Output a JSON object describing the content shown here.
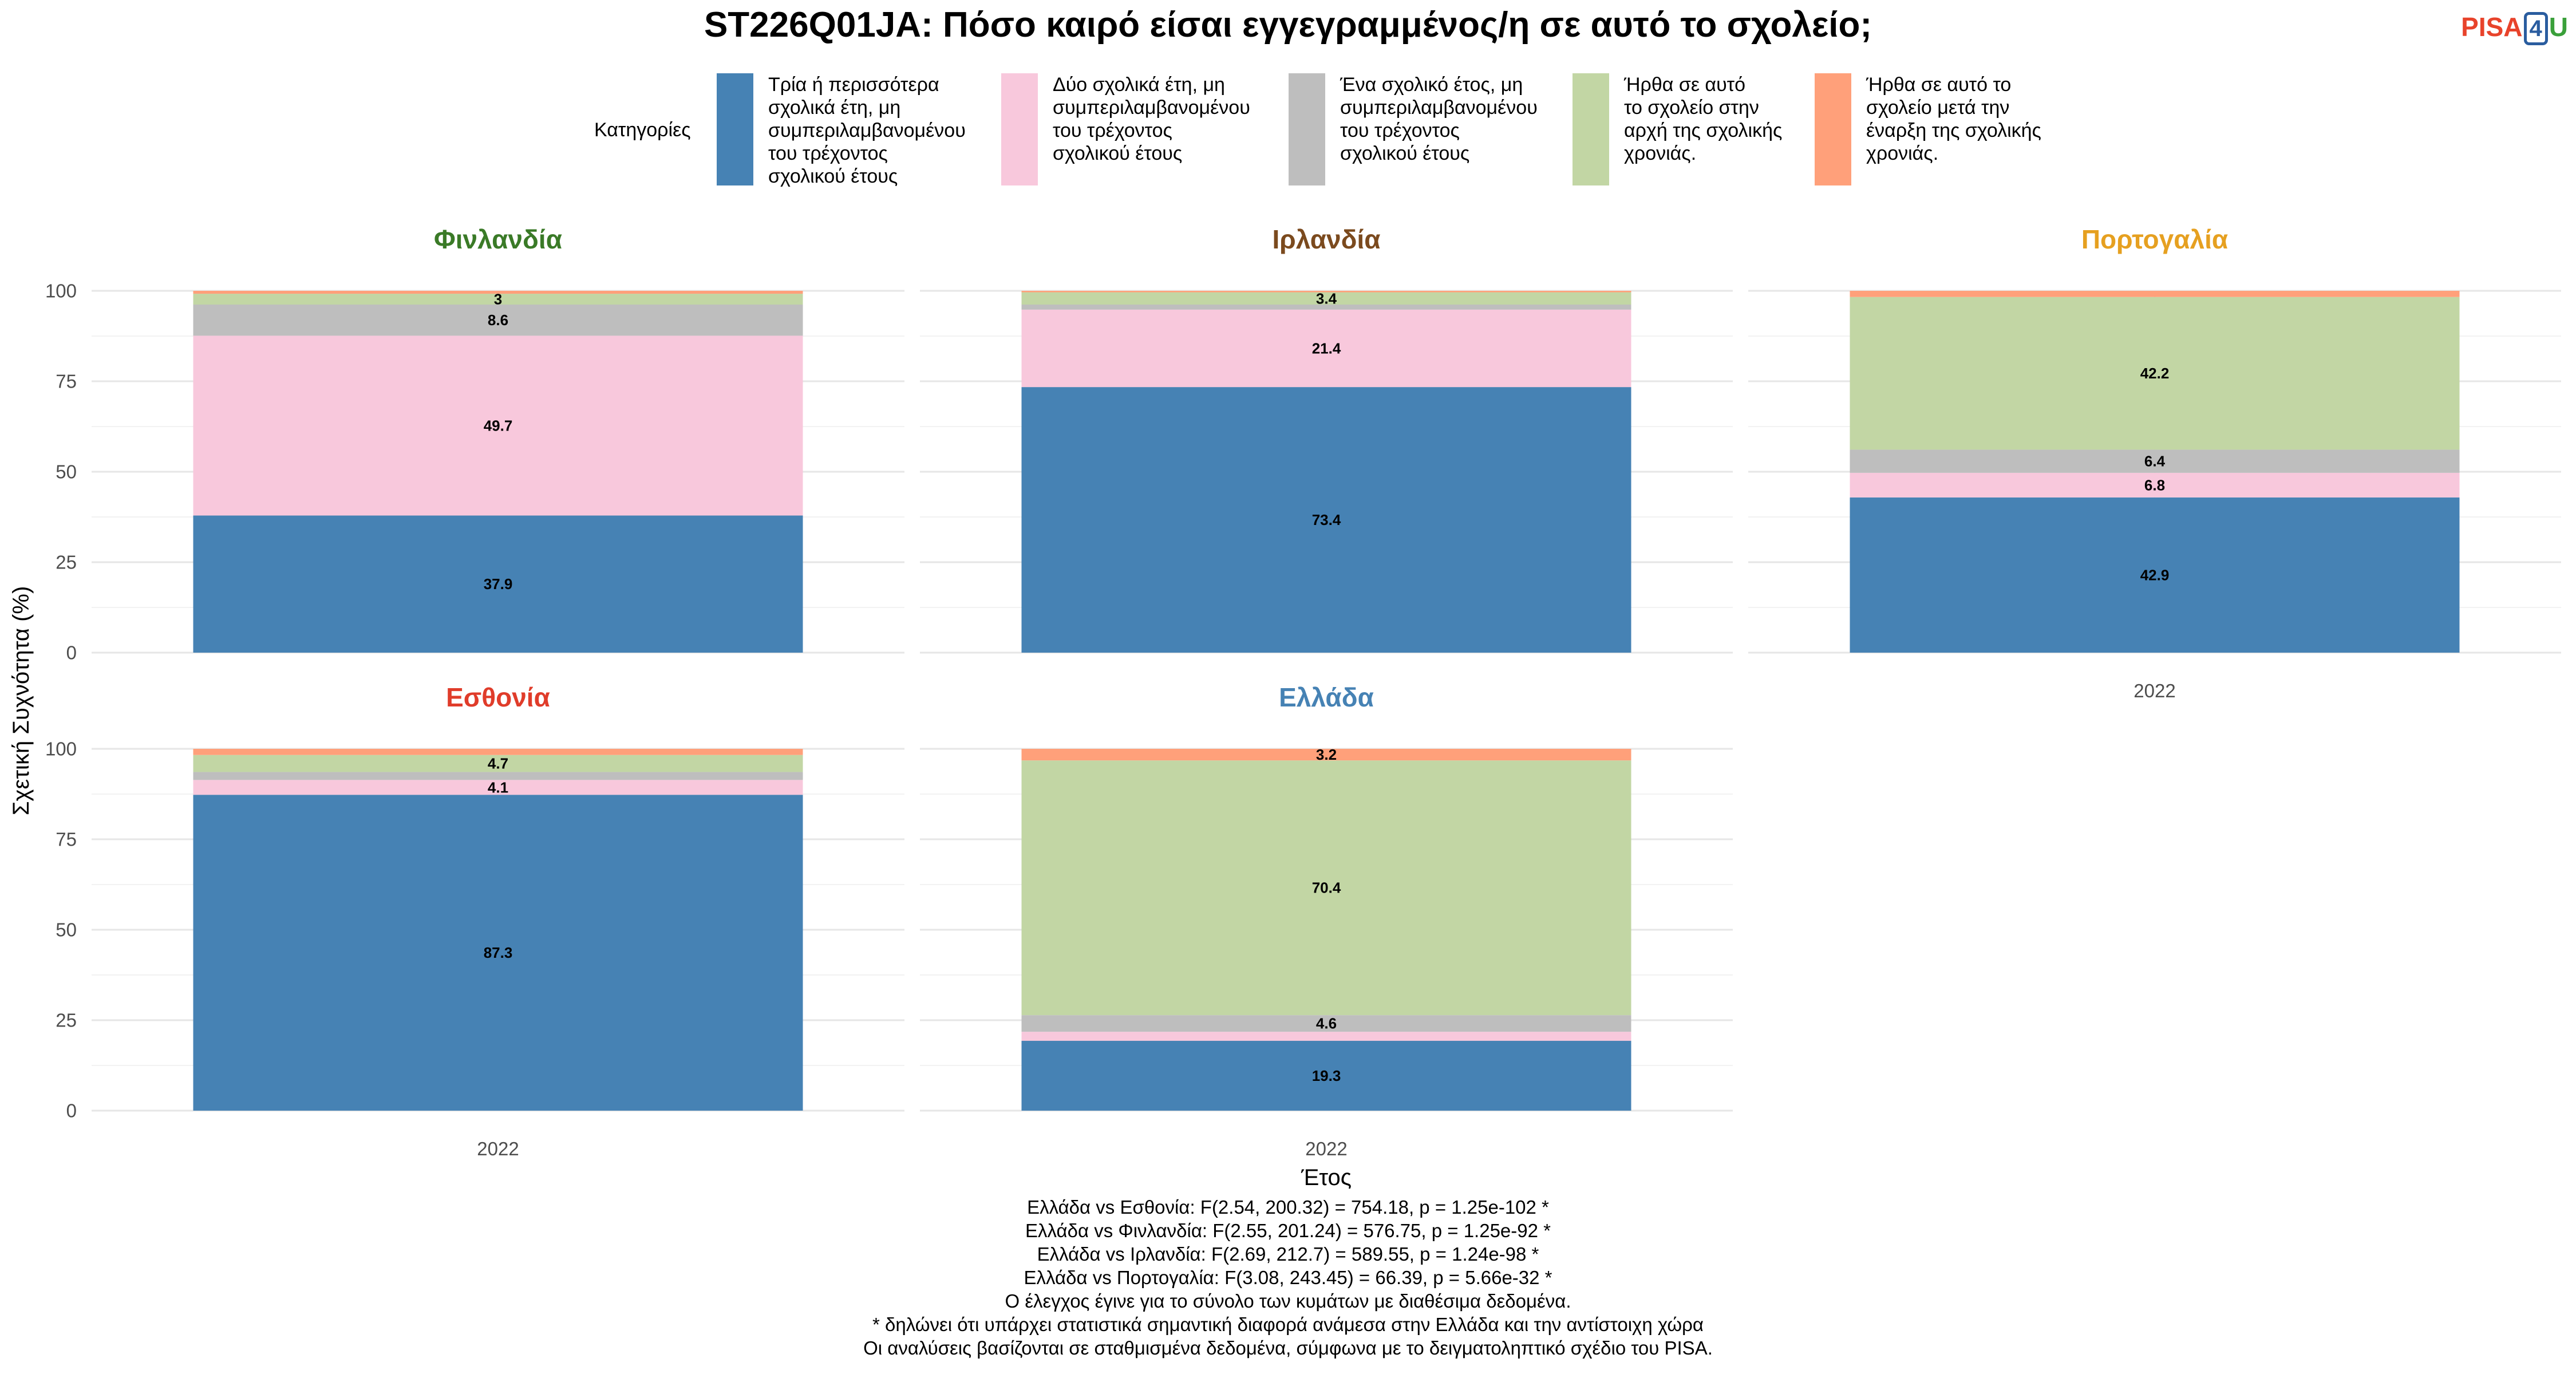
{
  "title": "ST226Q01JA: Πόσο καιρό είσαι εγγεγραμμένος/η σε αυτό το σχολείο;",
  "logo": {
    "pisa": "PISA",
    "four": "4",
    "u": "U"
  },
  "legend": {
    "title": "Κατηγορίες",
    "items": [
      {
        "label": "Τρία ή περισσότερα\nσχολικά έτη, μη\nσυμπεριλαμβανομένου\nτου τρέχοντος\nσχολικού έτους",
        "color": "#4682B4"
      },
      {
        "label": "Δύο σχολικά έτη, μη\nσυμπεριλαμβανομένου\nτου τρέχοντος\nσχολικού έτους",
        "color": "#F8C8DC"
      },
      {
        "label": "Ένα σχολικό έτος, μη\nσυμπεριλαμβανομένου\nτου τρέχοντος\nσχολικού έτους",
        "color": "#BEBEBE"
      },
      {
        "label": "Ήρθα σε αυτό\nτο σχολείο στην\nαρχή της σχολικής\nχρονιάς.",
        "color": "#C2D6A4"
      },
      {
        "label": "Ήρθα σε αυτό το\nσχολείο μετά την\nέναρξη της σχολικής\nχρονιάς.",
        "color": "#FFA07A"
      }
    ]
  },
  "chart_data": {
    "type": "bar",
    "stacked": true,
    "ylabel": "Σχετική Συχνότητα (%)",
    "xlabel": "Έτος",
    "ylim": [
      0,
      100
    ],
    "yticks": [
      0,
      25,
      50,
      75,
      100
    ],
    "categories": [
      "2022"
    ],
    "series_names": [
      "Τρία ή περισσότερα σχολικά έτη, μη συμπεριλαμβανομένου του τρέχοντος σχολικού έτους",
      "Δύο σχολικά έτη, μη συμπεριλαμβανομένου του τρέχοντος σχολικού έτους",
      "Ένα σχολικό έτος, μη συμπεριλαμβανομένου του τρέχοντος σχολικού έτους",
      "Ήρθα σε αυτό το σχολείο στην αρχή της σχολικής χρονιάς.",
      "Ήρθα σε αυτό το σχολείο μετά την έναρξη της σχολικής χρονιάς."
    ],
    "series_colors": [
      "#4682B4",
      "#F8C8DC",
      "#BEBEBE",
      "#C2D6A4",
      "#FFA07A"
    ],
    "panels": [
      {
        "name": "Φινλανδία",
        "title_color": "#3A7A27",
        "values": [
          37.9,
          49.7,
          8.6,
          3.0,
          0.8
        ],
        "labels": [
          "37.9",
          "49.7",
          "8.6",
          "3",
          ""
        ]
      },
      {
        "name": "Ιρλανδία",
        "title_color": "#7B4A1E",
        "values": [
          73.4,
          21.4,
          1.4,
          3.4,
          0.4
        ],
        "labels": [
          "73.4",
          "21.4",
          "",
          "3.4",
          ""
        ]
      },
      {
        "name": "Πορτογαλία",
        "title_color": "#E6A020",
        "values": [
          42.9,
          6.8,
          6.4,
          42.2,
          1.7
        ],
        "labels": [
          "42.9",
          "6.8",
          "6.4",
          "42.2",
          ""
        ]
      },
      {
        "name": "Εσθονία",
        "title_color": "#E03C2A",
        "values": [
          87.3,
          4.1,
          2.2,
          4.7,
          1.7
        ],
        "labels": [
          "87.3",
          "4.1",
          "",
          "4.7",
          ""
        ]
      },
      {
        "name": "Ελλάδα",
        "title_color": "#4682B4",
        "values": [
          19.3,
          2.5,
          4.6,
          70.4,
          3.2
        ],
        "labels": [
          "19.3",
          "",
          "4.6",
          "70.4",
          "3.2"
        ]
      }
    ]
  },
  "footer": [
    "Ελλάδα vs Εσθονία: F(2.54, 200.32) = 754.18, p = 1.25e-102 *",
    "Ελλάδα vs Φινλανδία: F(2.55, 201.24) = 576.75, p = 1.25e-92 *",
    "Ελλάδα vs Ιρλανδία: F(2.69, 212.7) = 589.55, p = 1.24e-98 *",
    "Ελλάδα vs Πορτογαλία: F(3.08, 243.45) = 66.39, p = 5.66e-32 *",
    "Ο έλεγχος έγινε για το σύνολο των κυμάτων με διαθέσιμα δεδομένα.",
    "* δηλώνει ότι υπάρχει στατιστικά σημαντική διαφορά ανάμεσα στην Ελλάδα και την αντίστοιχη χώρα",
    "Οι αναλύσεις βασίζονται σε σταθμισμένα δεδομένα, σύμφωνα με το δειγματοληπτικό σχέδιο του PISA."
  ]
}
